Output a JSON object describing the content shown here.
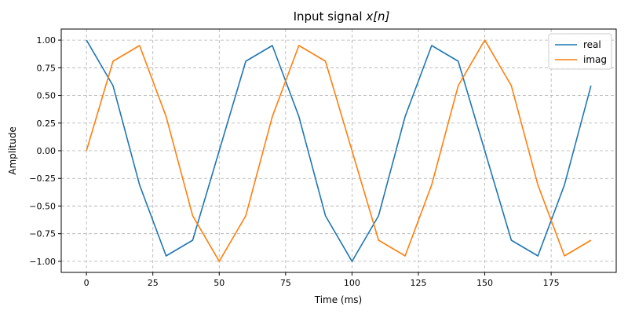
{
  "chart_data": {
    "type": "line",
    "title": "Input signal ",
    "title_math": "x[n]",
    "xlabel": "Time (ms)",
    "ylabel": "Amplitude",
    "xlim": [
      -9.5,
      199.5
    ],
    "ylim": [
      -1.1,
      1.1
    ],
    "xticks": [
      0,
      25,
      50,
      75,
      100,
      125,
      150,
      175
    ],
    "xtick_labels": [
      "0",
      "25",
      "50",
      "75",
      "100",
      "125",
      "150",
      "175"
    ],
    "yticks": [
      1.0,
      0.75,
      0.5,
      0.25,
      0.0,
      -0.25,
      -0.5,
      -0.75,
      -1.0
    ],
    "ytick_labels": [
      "1.00",
      "0.75",
      "0.50",
      "0.25",
      "0.00",
      "−0.25",
      "−0.50",
      "−0.75",
      "−1.00"
    ],
    "grid": true,
    "legend_position": "top-right",
    "x": [
      0,
      10,
      20,
      30,
      40,
      50,
      60,
      70,
      80,
      90,
      100,
      110,
      120,
      130,
      140,
      150,
      160,
      170,
      180,
      190
    ],
    "series": [
      {
        "name": "real",
        "color": "#1f77b4",
        "values": [
          1.0,
          0.588,
          -0.309,
          -0.951,
          -0.809,
          0.0,
          0.809,
          0.951,
          0.309,
          -0.588,
          -1.0,
          -0.588,
          0.309,
          0.951,
          0.809,
          0.0,
          -0.809,
          -0.951,
          -0.309,
          0.588
        ]
      },
      {
        "name": "imag",
        "color": "#ff7f0e",
        "values": [
          0.0,
          0.809,
          0.951,
          0.309,
          -0.588,
          -1.0,
          -0.588,
          0.309,
          0.951,
          0.809,
          0.0,
          -0.809,
          -0.951,
          -0.309,
          0.588,
          1.0,
          0.588,
          -0.309,
          -0.951,
          -0.809
        ]
      }
    ]
  }
}
